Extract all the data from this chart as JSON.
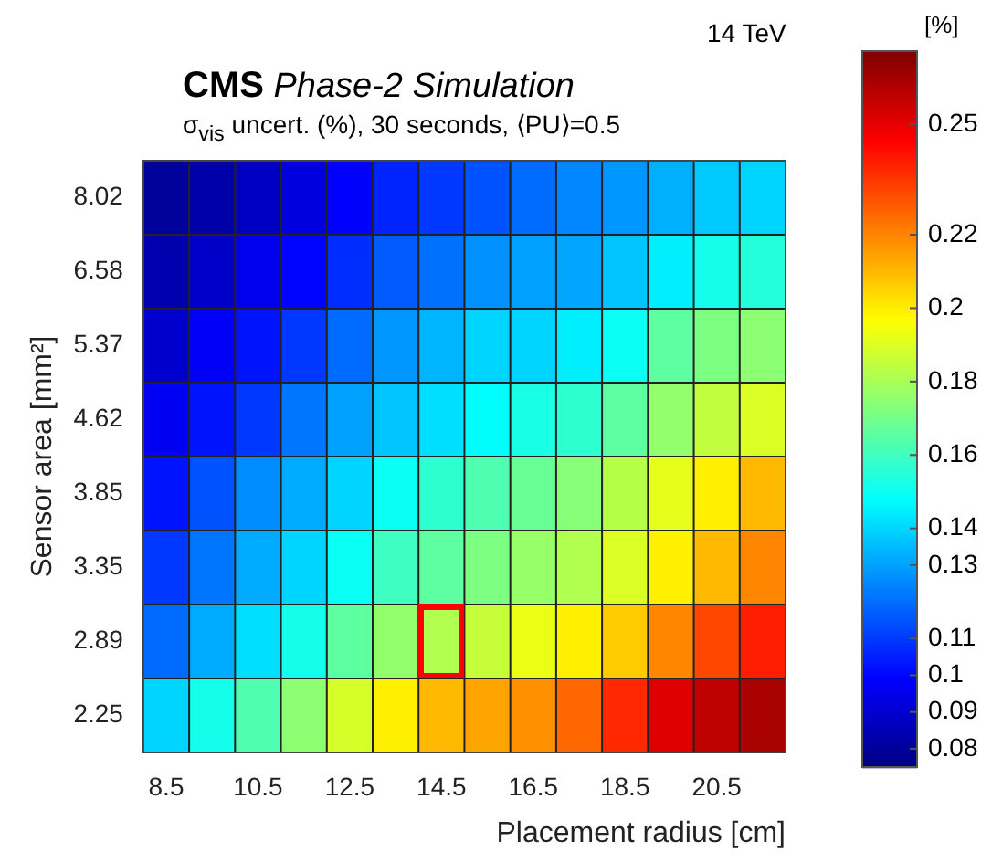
{
  "chart_data": {
    "type": "heatmap",
    "title": "CMS Phase-2 Simulation",
    "subtitle": "σ$_{vis}$ uncert. (%), 30 seconds, ⟨PU⟩=0.5",
    "xlabel": "Placement radius [cm]",
    "ylabel": "Sensor area [mm²]",
    "clabel": "[%]",
    "annotations": [
      "14 TeV"
    ],
    "categories": [
      "8.5",
      null,
      "10.5",
      null,
      "12.5",
      null,
      "14.5",
      null,
      "16.5",
      null,
      "18.5",
      null,
      "20.5",
      null
    ],
    "y_categories": [
      "8.02",
      "6.58",
      "5.37",
      "4.62",
      "3.85",
      "3.35",
      "2.89",
      "2.25"
    ],
    "cells": [
      [
        0.08,
        0.083,
        0.088,
        0.093,
        0.099,
        0.106,
        0.11,
        0.115,
        0.12,
        0.125,
        0.128,
        0.133,
        0.138,
        0.14
      ],
      [
        0.084,
        0.089,
        0.096,
        0.1,
        0.108,
        0.117,
        0.121,
        0.127,
        0.13,
        0.131,
        0.137,
        0.145,
        0.152,
        0.155
      ],
      [
        0.09,
        0.098,
        0.103,
        0.11,
        0.12,
        0.128,
        0.134,
        0.14,
        0.14,
        0.145,
        0.15,
        0.166,
        0.172,
        0.175
      ],
      [
        0.097,
        0.103,
        0.11,
        0.122,
        0.13,
        0.137,
        0.142,
        0.148,
        0.153,
        0.157,
        0.166,
        0.176,
        0.185,
        0.19
      ],
      [
        0.103,
        0.115,
        0.126,
        0.132,
        0.14,
        0.15,
        0.157,
        0.163,
        0.168,
        0.174,
        0.183,
        0.192,
        0.2,
        0.21
      ],
      [
        0.11,
        0.122,
        0.132,
        0.14,
        0.15,
        0.16,
        0.166,
        0.172,
        0.177,
        0.182,
        0.19,
        0.2,
        0.21,
        0.22
      ],
      [
        0.12,
        0.132,
        0.142,
        0.152,
        0.166,
        0.176,
        0.182,
        0.186,
        0.193,
        0.2,
        0.207,
        0.22,
        0.232,
        0.24
      ],
      [
        0.14,
        0.152,
        0.163,
        0.175,
        0.189,
        0.2,
        0.21,
        0.214,
        0.218,
        0.226,
        0.238,
        0.252,
        0.258,
        0.262
      ]
    ],
    "clim": [
      0.075,
      0.27
    ],
    "cticks": [
      0.08,
      0.09,
      0.1,
      0.11,
      0.13,
      0.14,
      0.16,
      0.18,
      0.2,
      0.22,
      0.25
    ]
  }
}
